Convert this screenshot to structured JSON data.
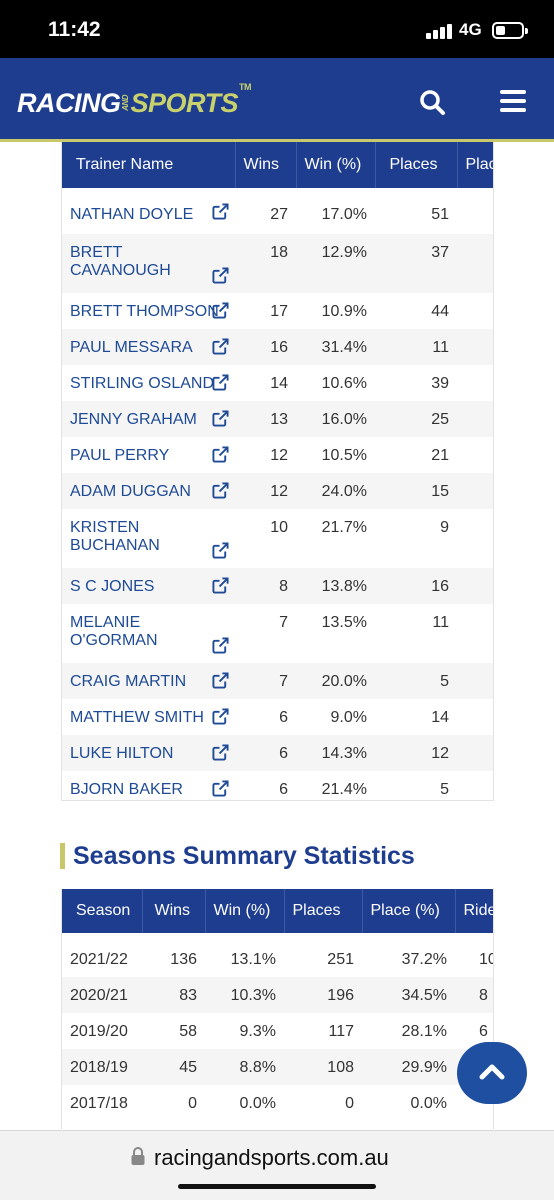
{
  "status_bar": {
    "time": "11:42",
    "network": "4G"
  },
  "header": {
    "logo_racing": "RACING",
    "logo_and": "AND",
    "logo_sports": "SPORTS",
    "logo_tm": "TM"
  },
  "trainer_table": {
    "columns": [
      "Trainer Name",
      "Wins",
      "Win (%)",
      "Places",
      "Plac"
    ],
    "rows": [
      {
        "name": "NATHAN DOYLE",
        "wins": "27",
        "win_pct": "17.0%",
        "places": "51"
      },
      {
        "name": "BRETT CAVANOUGH",
        "wins": "18",
        "win_pct": "12.9%",
        "places": "37"
      },
      {
        "name": "BRETT THOMPSON",
        "wins": "17",
        "win_pct": "10.9%",
        "places": "44"
      },
      {
        "name": "PAUL MESSARA",
        "wins": "16",
        "win_pct": "31.4%",
        "places": "11"
      },
      {
        "name": "STIRLING OSLAND",
        "wins": "14",
        "win_pct": "10.6%",
        "places": "39"
      },
      {
        "name": "JENNY GRAHAM",
        "wins": "13",
        "win_pct": "16.0%",
        "places": "25"
      },
      {
        "name": "PAUL PERRY",
        "wins": "12",
        "win_pct": "10.5%",
        "places": "21"
      },
      {
        "name": "ADAM DUGGAN",
        "wins": "12",
        "win_pct": "24.0%",
        "places": "15"
      },
      {
        "name": "KRISTEN BUCHANAN",
        "wins": "10",
        "win_pct": "21.7%",
        "places": "9"
      },
      {
        "name": "S C JONES",
        "wins": "8",
        "win_pct": "13.8%",
        "places": "16"
      },
      {
        "name": "MELANIE O'GORMAN",
        "wins": "7",
        "win_pct": "13.5%",
        "places": "11"
      },
      {
        "name": "CRAIG MARTIN",
        "wins": "7",
        "win_pct": "20.0%",
        "places": "5"
      },
      {
        "name": "MATTHEW SMITH",
        "wins": "6",
        "win_pct": "9.0%",
        "places": "14"
      },
      {
        "name": "LUKE HILTON",
        "wins": "6",
        "win_pct": "14.3%",
        "places": "12"
      },
      {
        "name": "BJORN BAKER",
        "wins": "6",
        "win_pct": "21.4%",
        "places": "5"
      }
    ]
  },
  "seasons": {
    "title": "Seasons Summary Statistics",
    "columns": [
      "Season",
      "Wins",
      "Win (%)",
      "Places",
      "Place (%)",
      "Ride"
    ],
    "rows": [
      {
        "season": "2021/22",
        "wins": "136",
        "win_pct": "13.1%",
        "places": "251",
        "place_pct": "37.2%",
        "rides": "10"
      },
      {
        "season": "2020/21",
        "wins": "83",
        "win_pct": "10.3%",
        "places": "196",
        "place_pct": "34.5%",
        "rides": "8"
      },
      {
        "season": "2019/20",
        "wins": "58",
        "win_pct": "9.3%",
        "places": "117",
        "place_pct": "28.1%",
        "rides": "6"
      },
      {
        "season": "2018/19",
        "wins": "45",
        "win_pct": "8.8%",
        "places": "108",
        "place_pct": "29.9%",
        "rides": ""
      },
      {
        "season": "2017/18",
        "wins": "0",
        "win_pct": "0.0%",
        "places": "0",
        "place_pct": "0.0%",
        "rides": ""
      }
    ]
  },
  "url_bar": {
    "url": "racingandsports.com.au"
  },
  "icons": {
    "search": "search-icon",
    "menu": "hamburger-menu-icon",
    "external": "external-link-icon",
    "scroll_up": "chevron-up-icon",
    "lock": "lock-icon"
  },
  "colors": {
    "brand_blue": "#1e3d8f",
    "accent": "#c8c86a",
    "link": "#1e4a96"
  }
}
